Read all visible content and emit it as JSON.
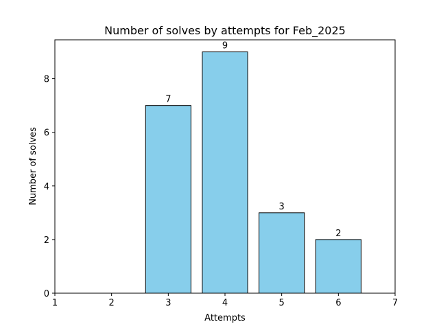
{
  "chart_data": {
    "type": "bar",
    "title": "Number of solves by attempts for Feb_2025",
    "xlabel": "Attempts",
    "ylabel": "Number of solves",
    "categories": [
      3,
      4,
      5,
      6
    ],
    "values": [
      7,
      9,
      3,
      2
    ],
    "data_labels": [
      "7",
      "9",
      "3",
      "2"
    ],
    "xlim": [
      1,
      7
    ],
    "ylim": [
      0,
      9.45
    ],
    "x_ticks": [
      "1",
      "2",
      "3",
      "4",
      "5",
      "6",
      "7"
    ],
    "y_ticks": [
      "0",
      "2",
      "4",
      "6",
      "8"
    ],
    "bar_color": "#87ceeb",
    "bar_edge_color": "#000000",
    "grid": false,
    "legend": "none"
  }
}
